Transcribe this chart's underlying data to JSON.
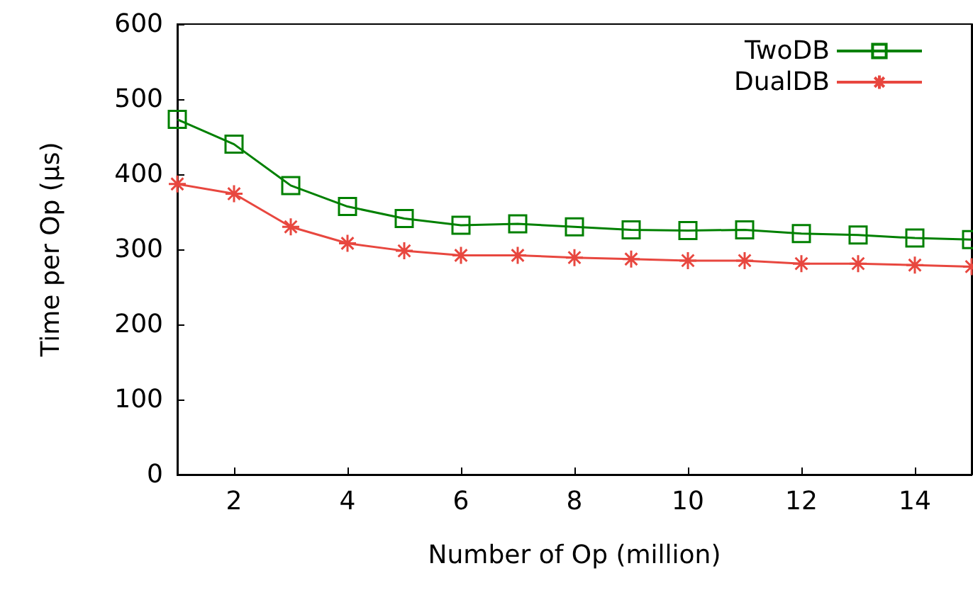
{
  "chart_data": {
    "type": "line",
    "xlabel": "Number of Op (million)",
    "ylabel": "Time per Op (µs)",
    "x": [
      1,
      2,
      3,
      4,
      5,
      6,
      7,
      8,
      9,
      10,
      11,
      12,
      13,
      14,
      15
    ],
    "series": [
      {
        "name": "TwoDB",
        "color": "#008000",
        "marker": "square",
        "values": [
          473,
          440,
          385,
          357,
          341,
          332,
          334,
          330,
          326,
          325,
          326,
          321,
          319,
          315,
          313
        ]
      },
      {
        "name": "DualDB",
        "color": "#e8473f",
        "marker": "cross",
        "values": [
          387,
          374,
          330,
          308,
          298,
          292,
          292,
          289,
          287,
          285,
          285,
          281,
          281,
          279,
          277
        ]
      }
    ],
    "xlim": [
      1,
      15
    ],
    "xticks": [
      2,
      4,
      6,
      8,
      10,
      12,
      14
    ],
    "ylim": [
      0,
      600
    ],
    "yticks": [
      0,
      100,
      200,
      300,
      400,
      500,
      600
    ],
    "grid": false,
    "legend": "top right"
  }
}
